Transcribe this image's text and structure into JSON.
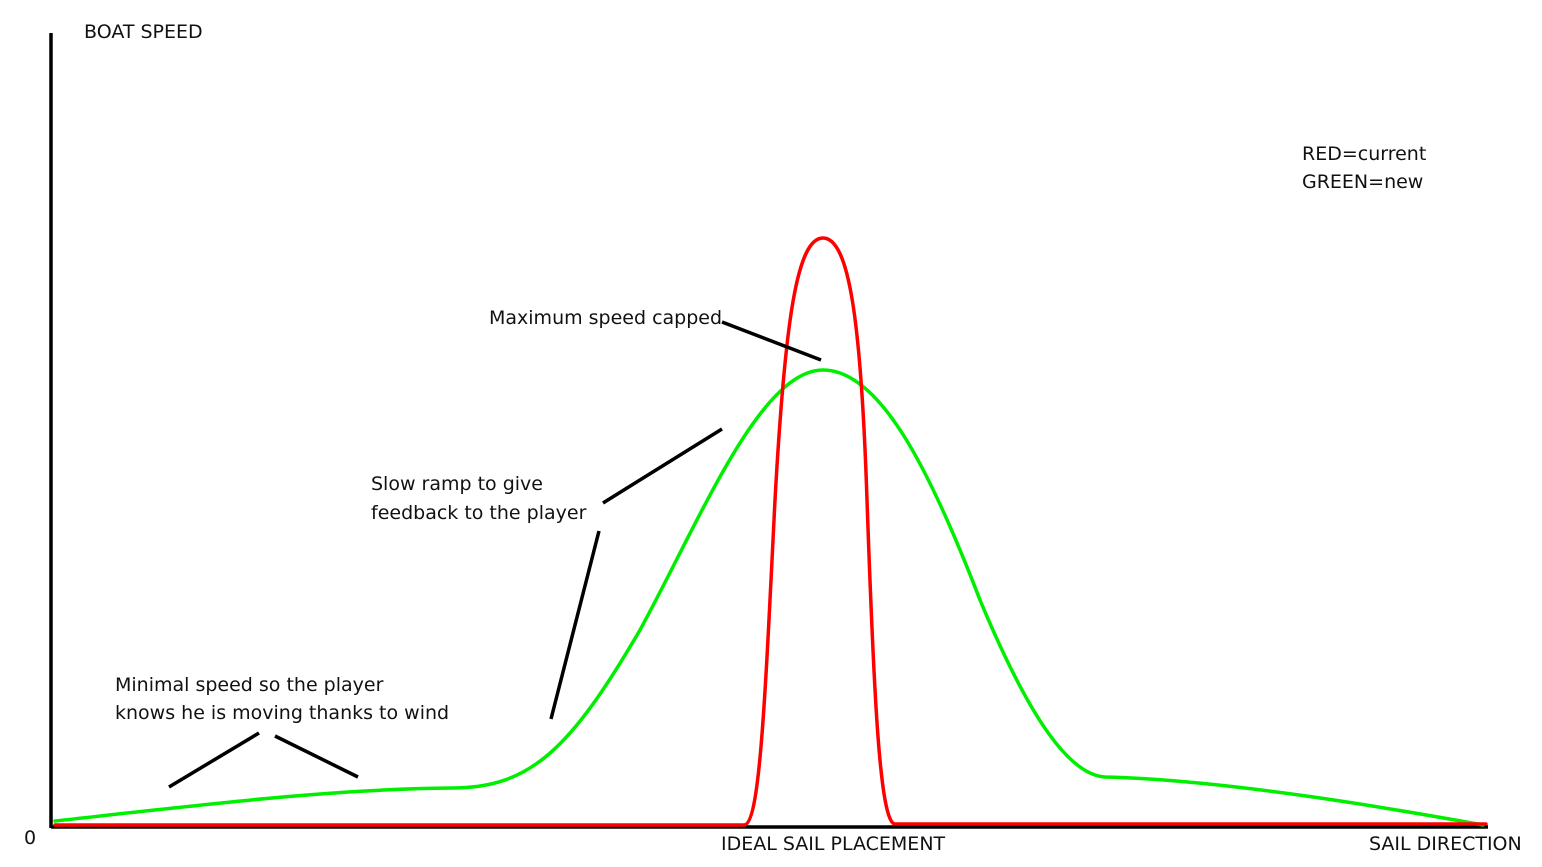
{
  "axes": {
    "y_label": "BOAT SPEED",
    "x_label": "SAIL DIRECTION",
    "origin_label": "0",
    "x_marker_label": "IDEAL SAIL PLACEMENT"
  },
  "legend": {
    "line1": "RED=current",
    "line2": "GREEN=new"
  },
  "annotations": {
    "max_cap": "Maximum speed capped",
    "ramp_line1": "Slow ramp to give",
    "ramp_line2": "feedback to the player",
    "minimal_line1": "Minimal speed so the player",
    "minimal_line2": "knows he is moving thanks to wind"
  },
  "colors": {
    "current": "#ff0000",
    "new": "#00ee00",
    "axis": "#000000",
    "pointer": "#000000"
  }
}
